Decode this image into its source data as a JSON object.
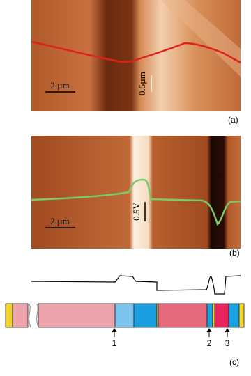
{
  "panel_a": {
    "scale_bar": "2 µm",
    "height_bar": "0.5µm",
    "label": "(a)"
  },
  "panel_b": {
    "scale_bar": "2 µm",
    "height_bar": "0.5V",
    "label": "(b)"
  },
  "panel_c": {
    "markers": [
      "1",
      "2",
      "3"
    ],
    "label": "(c)"
  }
}
